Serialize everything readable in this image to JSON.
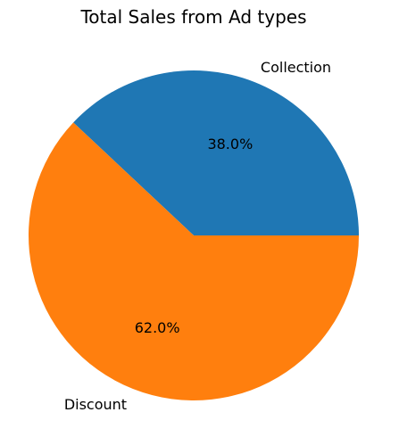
{
  "chart_data": {
    "type": "pie",
    "title": "Total Sales from Ad types",
    "slices": [
      {
        "label": "Collection",
        "value": 38.0,
        "pct_label": "38.0%",
        "color": "#1f77b4"
      },
      {
        "label": "Discount",
        "value": 62.0,
        "pct_label": "62.0%",
        "color": "#ff7f0e"
      }
    ],
    "start_angle_deg": 0,
    "direction": "counterclockwise"
  }
}
